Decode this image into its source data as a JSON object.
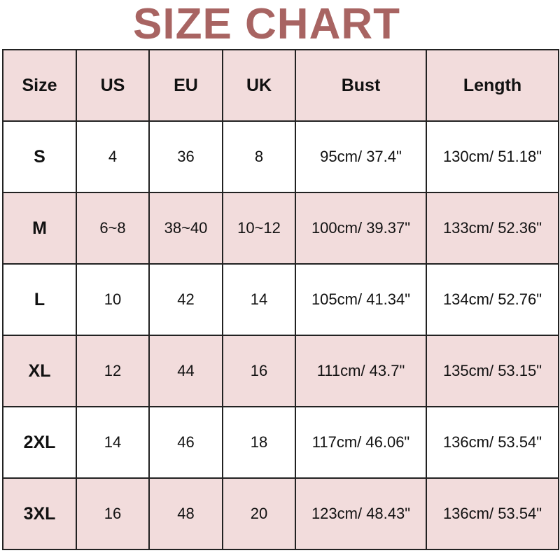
{
  "title": "SIZE CHART",
  "colors": {
    "title": "#a86462",
    "shaded_row": "#f2dcdc",
    "border": "#222222"
  },
  "headers": [
    "Size",
    "US",
    "EU",
    "UK",
    "Bust",
    "Length"
  ],
  "rows": [
    [
      "S",
      "4",
      "36",
      "8",
      "95cm/ 37.4\"",
      "130cm/ 51.18\""
    ],
    [
      "M",
      "6~8",
      "38~40",
      "10~12",
      "100cm/ 39.37\"",
      "133cm/ 52.36\""
    ],
    [
      "L",
      "10",
      "42",
      "14",
      "105cm/ 41.34\"",
      "134cm/ 52.76\""
    ],
    [
      "XL",
      "12",
      "44",
      "16",
      "111cm/ 43.7\"",
      "135cm/ 53.15\""
    ],
    [
      "2XL",
      "14",
      "46",
      "18",
      "117cm/ 46.06\"",
      "136cm/ 53.54\""
    ],
    [
      "3XL",
      "16",
      "48",
      "20",
      "123cm/ 48.43\"",
      "136cm/ 53.54\""
    ]
  ]
}
